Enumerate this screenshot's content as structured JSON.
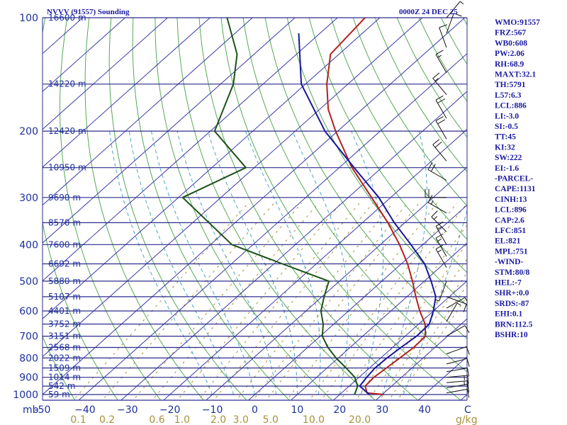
{
  "header": {
    "station": "NVVV (91557) Sounding",
    "time": "0000Z 24 DEC 25"
  },
  "axis": {
    "pressure_unit": "mb",
    "mixing_unit": "g/kg",
    "temp_end_label": "C"
  },
  "chart_data": {
    "type": "skew-t log-p sounding",
    "pressure_levels": [
      {
        "p": 100,
        "label": "100",
        "height": "16600 m"
      },
      {
        "p": 150,
        "label": "",
        "height": "14220 m"
      },
      {
        "p": 200,
        "label": "200",
        "height": "12420 m"
      },
      {
        "p": 250,
        "label": "",
        "height": "10950 m"
      },
      {
        "p": 300,
        "label": "300",
        "height": "9690 m"
      },
      {
        "p": 350,
        "label": "",
        "height": "8570 m"
      },
      {
        "p": 400,
        "label": "400",
        "height": "7600 m"
      },
      {
        "p": 450,
        "label": "",
        "height": "6692 m"
      },
      {
        "p": 500,
        "label": "500",
        "height": "5880 m"
      },
      {
        "p": 550,
        "label": "",
        "height": "5107 m"
      },
      {
        "p": 600,
        "label": "600",
        "height": "4401 m"
      },
      {
        "p": 650,
        "label": "",
        "height": "3752 m"
      },
      {
        "p": 700,
        "label": "700",
        "height": "3151 m"
      },
      {
        "p": 750,
        "label": "",
        "height": "2568 m"
      },
      {
        "p": 800,
        "label": "800",
        "height": "2022 m"
      },
      {
        "p": 850,
        "label": "",
        "height": "1509 m"
      },
      {
        "p": 900,
        "label": "900",
        "height": "1014 m"
      },
      {
        "p": 950,
        "label": "",
        "height": "542 m"
      },
      {
        "p": 1000,
        "label": "1000",
        "height": "59 m"
      }
    ],
    "temperature_ticks": [
      {
        "t": -50,
        "label": "-50"
      },
      {
        "t": -40,
        "label": "−40"
      },
      {
        "t": -30,
        "label": "−30"
      },
      {
        "t": -20,
        "label": "−20"
      },
      {
        "t": -10,
        "label": "−10"
      },
      {
        "t": 0,
        "label": "0"
      },
      {
        "t": 10,
        "label": "10"
      },
      {
        "t": 20,
        "label": "20"
      },
      {
        "t": 30,
        "label": "30"
      },
      {
        "t": 40,
        "label": "40"
      }
    ],
    "mixing_ratio_ticks": [
      {
        "w": 0.1,
        "label": "0.1"
      },
      {
        "w": 0.2,
        "label": "0.2"
      },
      {
        "w": 0.6,
        "label": "0.6"
      },
      {
        "w": 1.0,
        "label": "1.0"
      },
      {
        "w": 2.0,
        "label": "2.0"
      },
      {
        "w": 3.0,
        "label": "3.0"
      },
      {
        "w": 5.0,
        "label": "5.0"
      },
      {
        "w": 10.0,
        "label": "10.0"
      },
      {
        "w": 20.0,
        "label": "20.0"
      }
    ],
    "series": [
      {
        "color": "#b3201e",
        "points": [
          [
            1000,
            30.5
          ],
          [
            990,
            26
          ],
          [
            950,
            23.8
          ],
          [
            900,
            23.5
          ],
          [
            850,
            24
          ],
          [
            800,
            24.5
          ],
          [
            750,
            25
          ],
          [
            700,
            24.8
          ],
          [
            650,
            21.5
          ],
          [
            600,
            16.8
          ],
          [
            550,
            12.1
          ],
          [
            500,
            7.2
          ],
          [
            450,
            1.5
          ],
          [
            400,
            -5.5
          ],
          [
            350,
            -14
          ],
          [
            300,
            -24.5
          ],
          [
            250,
            -37
          ],
          [
            200,
            -50.5
          ],
          [
            175,
            -58
          ],
          [
            150,
            -65
          ],
          [
            125,
            -72
          ],
          [
            100,
            -73.5
          ]
        ]
      },
      {
        "color": "#17179a",
        "points": [
          [
            1000,
            27
          ],
          [
            950,
            22.5
          ],
          [
            900,
            21.8
          ],
          [
            850,
            21.3
          ],
          [
            800,
            21.5
          ],
          [
            750,
            22
          ],
          [
            700,
            22.7
          ],
          [
            650,
            22.5
          ],
          [
            600,
            20
          ],
          [
            550,
            16.8
          ],
          [
            500,
            11.6
          ],
          [
            450,
            5.5
          ],
          [
            400,
            -2.8
          ],
          [
            350,
            -12.5
          ],
          [
            300,
            -22.8
          ],
          [
            250,
            -36.5
          ],
          [
            200,
            -53
          ],
          [
            150,
            -71
          ],
          [
            110,
            -85
          ]
        ]
      },
      {
        "color": "#1c5218",
        "points": [
          [
            1000,
            23.5
          ],
          [
            950,
            22
          ],
          [
            900,
            19
          ],
          [
            850,
            14.5
          ],
          [
            800,
            9.5
          ],
          [
            750,
            4.8
          ],
          [
            700,
            0.5
          ],
          [
            650,
            -2.5
          ],
          [
            600,
            -6.5
          ],
          [
            550,
            -9.5
          ],
          [
            500,
            -12.5
          ],
          [
            450,
            -28
          ],
          [
            400,
            -45
          ],
          [
            300,
            -69
          ],
          [
            250,
            -62
          ],
          [
            200,
            -79
          ],
          [
            150,
            -87
          ],
          [
            125,
            -94
          ],
          [
            100,
            -106
          ]
        ]
      }
    ],
    "wind_barbs": [
      {
        "p": 990,
        "dir": 80,
        "spd": 8
      },
      {
        "p": 960,
        "dir": 80,
        "spd": 12
      },
      {
        "p": 930,
        "dir": 85,
        "spd": 15
      },
      {
        "p": 900,
        "dir": 85,
        "spd": 15
      },
      {
        "p": 870,
        "dir": 80,
        "spd": 12
      },
      {
        "p": 830,
        "dir": 75,
        "spd": 10
      },
      {
        "p": 780,
        "dir": 70,
        "spd": 10
      },
      {
        "p": 700,
        "dir": 60,
        "spd": 8
      },
      {
        "p": 640,
        "dir": 30,
        "spd": 5
      },
      {
        "p": 590,
        "dir": 60,
        "spd": 5
      },
      {
        "p": 550,
        "dir": 110,
        "spd": 8
      },
      {
        "p": 500,
        "dir": 200,
        "spd": 5
      },
      {
        "p": 460,
        "dir": 330,
        "spd": 15
      },
      {
        "p": 430,
        "dir": 330,
        "spd": 15
      },
      {
        "p": 400,
        "dir": 330,
        "spd": 15
      },
      {
        "p": 370,
        "dir": 315,
        "spd": 15
      },
      {
        "p": 330,
        "dir": 300,
        "spd": 15
      },
      {
        "p": 300,
        "dir": 270,
        "spd": 20
      },
      {
        "p": 270,
        "dir": 300,
        "spd": 20
      },
      {
        "p": 240,
        "dir": 320,
        "spd": 20
      },
      {
        "p": 210,
        "dir": 330,
        "spd": 20
      },
      {
        "p": 185,
        "dir": 330,
        "spd": 20
      },
      {
        "p": 160,
        "dir": 320,
        "spd": 15
      },
      {
        "p": 140,
        "dir": 330,
        "spd": 15
      },
      {
        "p": 120,
        "dir": 340,
        "spd": 10
      },
      {
        "p": 110,
        "dir": 20,
        "spd": 10
      },
      {
        "p": 100,
        "dir": 40,
        "spd": 5
      }
    ]
  },
  "indices": [
    "WMO:91557",
    "FRZ:567",
    "WB0:608",
    "PW:2.06",
    "RH:68.9",
    "MAXT:32.1",
    "TH:5791",
    "L57:6.3",
    "LCL:886",
    "LI:-3.0",
    "SI:-0.5",
    "TT:45",
    "KI:32",
    "SW:222",
    "EI:-1.6",
    "-PARCEL-",
    "CAPE:1131",
    "CINH:13",
    "LCL:896",
    "CAP:2.6",
    "LFC:851",
    "EL:821",
    "MPL:751",
    "-WIND-",
    "STM:80/8",
    "HEL:-7",
    "SHR+:0.0",
    "SRDS:-87",
    "EHI:0.1",
    "BRN:112.5",
    "BSHR:10"
  ],
  "colors": {
    "isobar": "#2d2d8c",
    "frame": "#2d2d8c",
    "isotherm": "#3a3aa8",
    "dry_adiabat": "#55a955",
    "moist_adiabat": "#4aa5c8",
    "mixing_ratio": "#a89238",
    "barb": "#111111"
  }
}
